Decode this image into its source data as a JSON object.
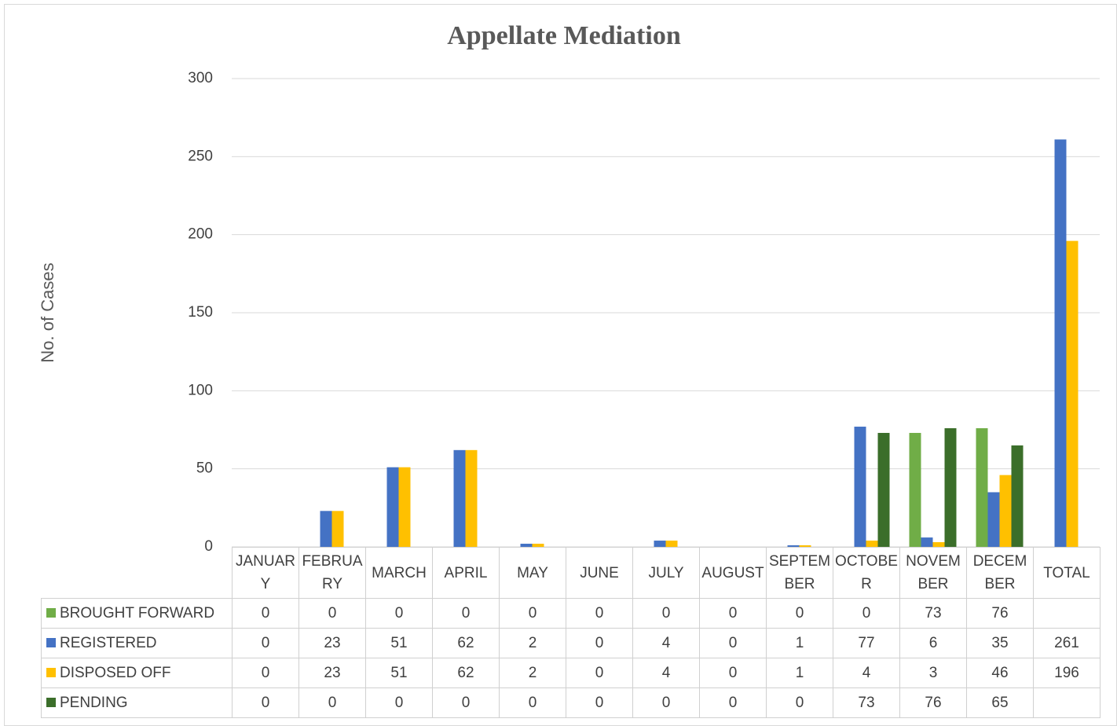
{
  "chart_data": {
    "type": "bar",
    "title": "Appellate Mediation",
    "y_label": "No. of Cases",
    "categories": [
      "JANUARY",
      "FEBRUARY",
      "MARCH",
      "APRIL",
      "MAY",
      "JUNE",
      "JULY",
      "AUGUST",
      "SEPTEMBER",
      "OCTOBER",
      "NOVEMBER",
      "DECEMBER",
      "TOTAL"
    ],
    "series": [
      {
        "name": "BROUGHT FORWARD",
        "color": "#70ad47",
        "values": [
          0,
          0,
          0,
          0,
          0,
          0,
          0,
          0,
          0,
          0,
          73,
          76,
          null
        ]
      },
      {
        "name": "REGISTERED",
        "color": "#4472c4",
        "values": [
          0,
          23,
          51,
          62,
          2,
          0,
          4,
          0,
          1,
          77,
          6,
          35,
          261
        ]
      },
      {
        "name": "DISPOSED OFF",
        "color": "#ffc000",
        "values": [
          0,
          23,
          51,
          62,
          2,
          0,
          4,
          0,
          1,
          4,
          3,
          46,
          196
        ]
      },
      {
        "name": "PENDING",
        "color": "#3b6e2a",
        "values": [
          0,
          0,
          0,
          0,
          0,
          0,
          0,
          0,
          0,
          73,
          76,
          65,
          null
        ]
      }
    ],
    "ylim": [
      0,
      300
    ],
    "yticks": [
      0,
      50,
      100,
      150,
      200,
      250,
      300
    ],
    "grid": true
  }
}
